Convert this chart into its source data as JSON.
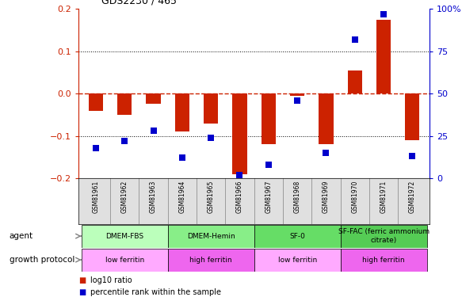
{
  "title": "GDS2230 / 465",
  "samples": [
    "GSM81961",
    "GSM81962",
    "GSM81963",
    "GSM81964",
    "GSM81965",
    "GSM81966",
    "GSM81967",
    "GSM81968",
    "GSM81969",
    "GSM81970",
    "GSM81971",
    "GSM81972"
  ],
  "log10_ratio": [
    -0.04,
    -0.05,
    -0.025,
    -0.09,
    -0.07,
    -0.19,
    -0.12,
    -0.005,
    -0.12,
    0.055,
    0.175,
    -0.11
  ],
  "percentile_rank": [
    18,
    22,
    28,
    12,
    24,
    2,
    8,
    46,
    15,
    82,
    97,
    13
  ],
  "ylim_left": [
    -0.2,
    0.2
  ],
  "ylim_right": [
    0,
    100
  ],
  "yticks_left": [
    -0.2,
    -0.1,
    0.0,
    0.1,
    0.2
  ],
  "yticks_right": [
    0,
    25,
    50,
    75,
    100
  ],
  "bar_color": "#cc2200",
  "dot_color": "#0000cc",
  "zero_line_color": "#cc2200",
  "grid_color": "#000000",
  "agent_groups": [
    {
      "label": "DMEM-FBS",
      "start": 0,
      "end": 3,
      "color": "#bbffbb"
    },
    {
      "label": "DMEM-Hemin",
      "start": 3,
      "end": 6,
      "color": "#88ee88"
    },
    {
      "label": "SF-0",
      "start": 6,
      "end": 9,
      "color": "#66dd66"
    },
    {
      "label": "SF-FAC (ferric ammonium\ncitrate)",
      "start": 9,
      "end": 12,
      "color": "#55cc55"
    }
  ],
  "protocol_groups": [
    {
      "label": "low ferritin",
      "start": 0,
      "end": 3,
      "color": "#ffaaff"
    },
    {
      "label": "high ferritin",
      "start": 3,
      "end": 6,
      "color": "#ee66ee"
    },
    {
      "label": "low ferritin",
      "start": 6,
      "end": 9,
      "color": "#ffaaff"
    },
    {
      "label": "high ferritin",
      "start": 9,
      "end": 12,
      "color": "#ee66ee"
    }
  ],
  "agent_label": "agent",
  "protocol_label": "growth protocol",
  "legend_bar_label": "log10 ratio",
  "legend_dot_label": "percentile rank within the sample",
  "background_color": "#ffffff",
  "tick_label_color_left": "#cc2200",
  "tick_label_color_right": "#0000cc"
}
